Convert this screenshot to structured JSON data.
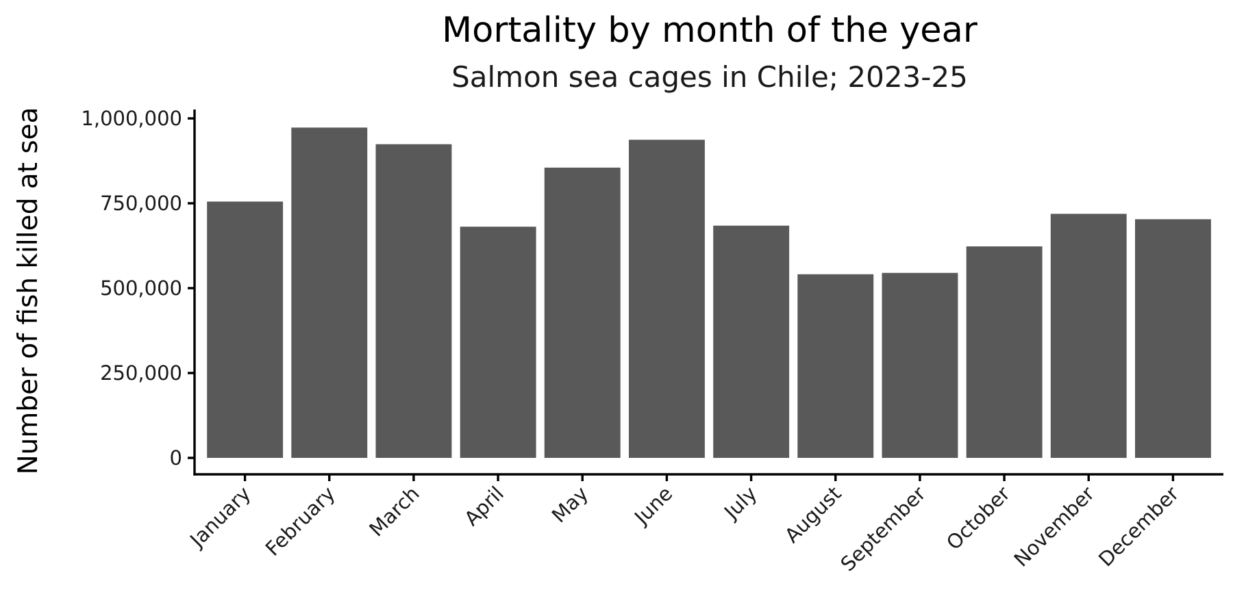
{
  "chart_data": {
    "type": "bar",
    "title": "Mortality by month of the year",
    "subtitle": "Salmon sea cages in Chile; 2023-25",
    "xlabel": "",
    "ylabel": "Number of fish killed at sea",
    "categories": [
      "January",
      "February",
      "March",
      "April",
      "May",
      "June",
      "July",
      "August",
      "September",
      "October",
      "November",
      "December"
    ],
    "values": [
      755000,
      973000,
      924000,
      681000,
      855000,
      937000,
      684000,
      541000,
      545000,
      623000,
      719000,
      703000
    ],
    "ylim": [
      0,
      1025000
    ],
    "yticks": [
      0,
      250000,
      500000,
      750000,
      1000000
    ],
    "ytick_labels": [
      "0",
      "250,000",
      "500,000",
      "750,000",
      "1,000,000"
    ],
    "bar_color": "#595959",
    "grid": false,
    "legend": "none"
  }
}
